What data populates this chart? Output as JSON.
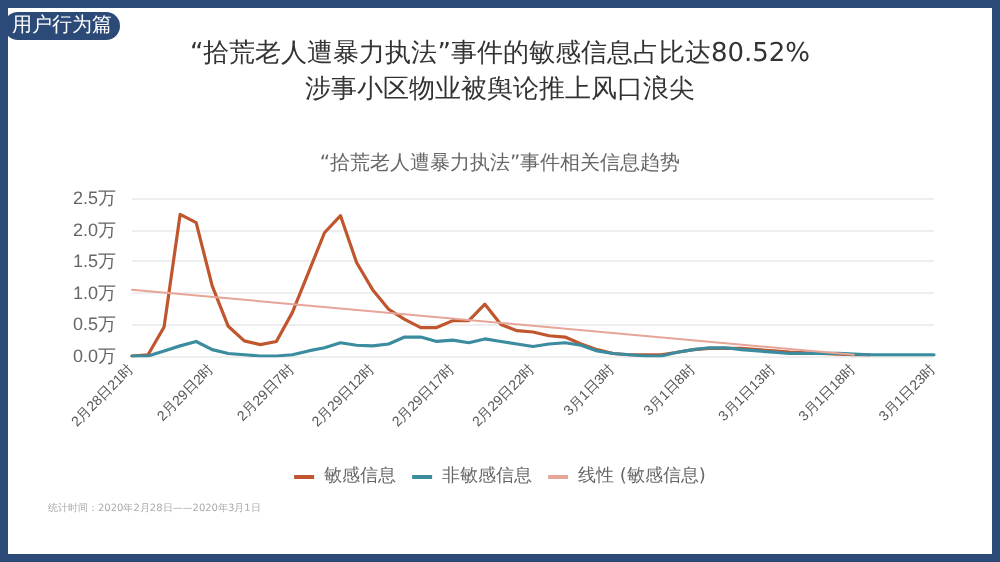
{
  "chart_data": {
    "type": "line",
    "title": "“拾荒老人遭暴力执法”事件的敏感信息占比达80.52%\n涉事小区物业被舆论推上风口浪尖",
    "subtitle": "“拾荒老人遭暴力执法”事件相关信息趋势",
    "categories": [
      "2月28日21时",
      null,
      null,
      null,
      null,
      "2月29日2时",
      null,
      null,
      null,
      null,
      "2月29日7时",
      null,
      null,
      null,
      null,
      "2月29日12时",
      null,
      null,
      null,
      null,
      "2月29日17时",
      null,
      null,
      null,
      null,
      "2月29日22时",
      null,
      null,
      null,
      null,
      "3月1日3时",
      null,
      null,
      null,
      null,
      "3月1日8时",
      null,
      null,
      null,
      null,
      "3月1日13时",
      null,
      null,
      null,
      null,
      "3月1日18时",
      null,
      null,
      null,
      null,
      "3月1日23时"
    ],
    "series": [
      {
        "name": "敏感信息",
        "color": "#c0562e",
        "values": [
          0,
          0.02,
          0.46,
          2.24,
          2.11,
          1.11,
          0.47,
          0.24,
          0.18,
          0.23,
          0.69,
          1.32,
          1.95,
          2.22,
          1.48,
          1.05,
          0.74,
          0.58,
          0.45,
          0.45,
          0.56,
          0.56,
          0.82,
          0.5,
          0.4,
          0.38,
          0.32,
          0.3,
          0.19,
          0.1,
          0.04,
          0.02,
          0.02,
          0.02,
          0.06,
          0.1,
          0.12,
          0.12,
          0.12,
          0.1,
          0.08,
          0.06,
          0.05,
          0.04,
          0.03,
          0.02,
          0.02,
          null,
          null,
          null,
          null
        ]
      },
      {
        "name": "非敏感信息",
        "color": "#3b8c9e",
        "values": [
          0,
          0,
          0.08,
          0.16,
          0.23,
          0.1,
          0.04,
          0.02,
          0,
          0,
          0.02,
          0.08,
          0.13,
          0.21,
          0.17,
          0.16,
          0.19,
          0.3,
          0.3,
          0.23,
          0.25,
          0.21,
          0.27,
          0.23,
          0.19,
          0.15,
          0.19,
          0.21,
          0.17,
          0.08,
          0.04,
          0.02,
          0,
          0,
          0.06,
          0.1,
          0.13,
          0.13,
          0.1,
          0.08,
          0.06,
          0.04,
          0.04,
          0.04,
          0.04,
          0.03,
          0.02,
          0.02,
          0.02,
          0.02,
          0.02
        ]
      },
      {
        "name": "线性 (敏感信息)",
        "color": "#e6a597",
        "x": [
          "2月28日21时",
          "3月1日18时"
        ],
        "values": [
          1.05,
          0.02
        ]
      }
    ],
    "ylim": [
      0,
      2.5
    ],
    "yticks": [
      {
        "value": 0,
        "label": "0.0万"
      },
      {
        "value": 0.5,
        "label": "0.5万"
      },
      {
        "value": 1,
        "label": "1.0万"
      },
      {
        "value": 1.5,
        "label": "1.5万"
      },
      {
        "value": 2,
        "label": "2.0万"
      },
      {
        "value": 2.5,
        "label": "2.5万"
      }
    ],
    "grid": "y",
    "legend": "bottom",
    "marker": "none",
    "line_style": "solid",
    "annotations": [
      "用户行为篇",
      "统计时间：2020年2月28日——2020年3月1日"
    ]
  }
}
